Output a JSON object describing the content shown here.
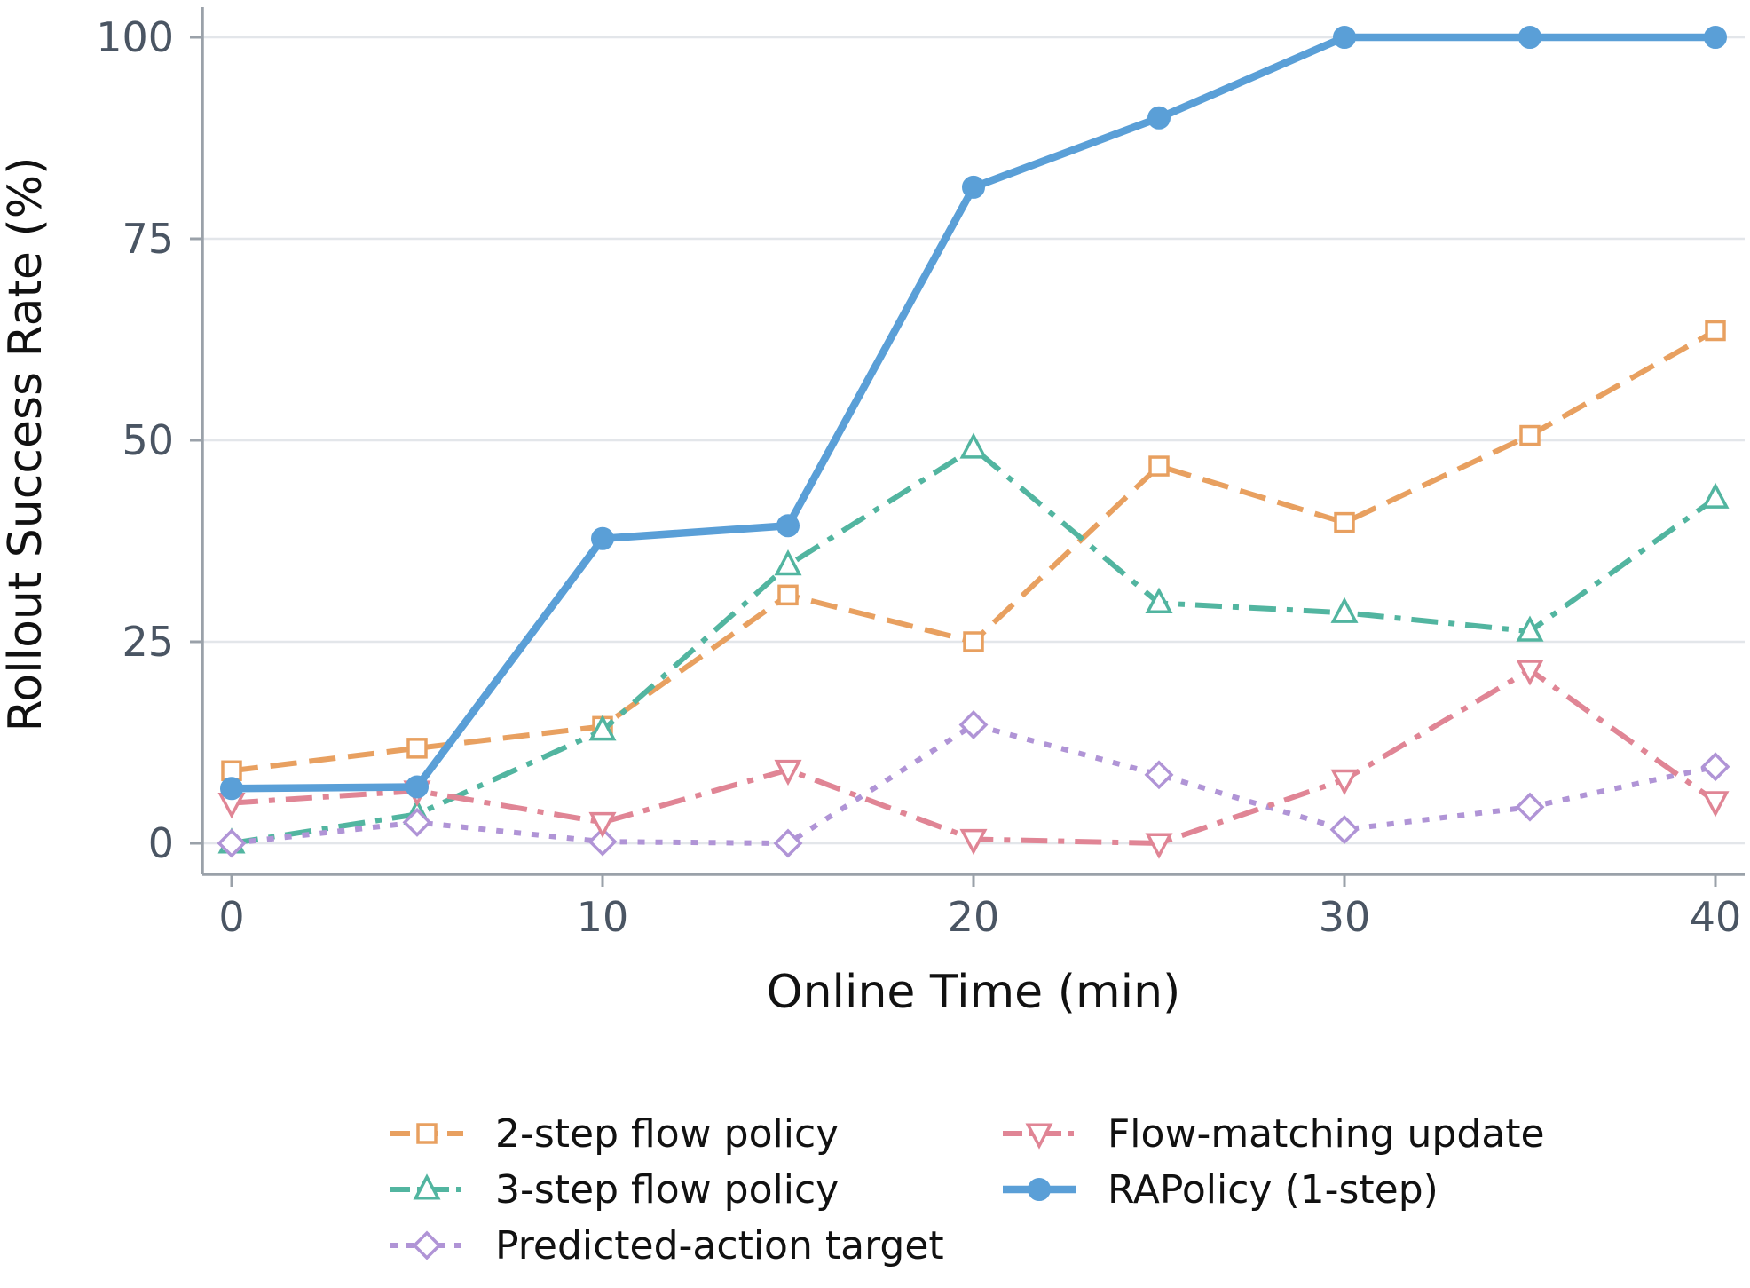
{
  "chart_data": {
    "type": "line",
    "xlabel": "Online Time (min)",
    "ylabel": "Rollout Success Rate (%)",
    "xlim": [
      -1.5,
      40.9
    ],
    "ylim": [
      -4,
      104
    ],
    "xticks": [
      0,
      10,
      20,
      30,
      40
    ],
    "yticks": [
      0,
      25,
      50,
      75,
      100
    ],
    "grid": "horizontal",
    "legend_position": "bottom",
    "series": [
      {
        "name": "2-step flow policy",
        "color": "#E8A060",
        "dash": "dashed",
        "marker": "square-open",
        "x": [
          0,
          5,
          10,
          15,
          20,
          25,
          30,
          35,
          40
        ],
        "y": [
          9,
          11.8,
          14.5,
          30.8,
          25,
          46.8,
          39.8,
          50.6,
          63.6
        ]
      },
      {
        "name": "3-step flow policy",
        "color": "#52B5A0",
        "dash": "dash-dot",
        "marker": "triangle-up-open",
        "x": [
          0,
          5,
          10,
          15,
          20,
          25,
          30,
          35,
          40
        ],
        "y": [
          0,
          3.6,
          14,
          34.5,
          49,
          29.8,
          28.6,
          26.3,
          42.8
        ]
      },
      {
        "name": "Predicted-action target",
        "color": "#B094D6",
        "dash": "dotted",
        "marker": "diamond-open",
        "x": [
          0,
          5,
          10,
          15,
          20,
          25,
          30,
          35,
          40
        ],
        "y": [
          0,
          2.6,
          0.2,
          0,
          14.7,
          8.5,
          1.7,
          4.5,
          9.5
        ]
      },
      {
        "name": "Flow-matching update",
        "color": "#E08595",
        "dash": "dash-dot",
        "marker": "triangle-down-open",
        "x": [
          0,
          5,
          10,
          15,
          20,
          25,
          30,
          35,
          40
        ],
        "y": [
          5,
          6.5,
          2.6,
          9.1,
          0.5,
          0,
          7.9,
          21.5,
          5.2
        ]
      },
      {
        "name": "RAPolicy (1-step)",
        "color": "#5A9FD7",
        "dash": "solid",
        "marker": "circle-filled",
        "x": [
          0,
          5,
          10,
          15,
          20,
          25,
          30,
          35,
          40
        ],
        "y": [
          6.8,
          7,
          37.8,
          39.4,
          81.4,
          90,
          100,
          100,
          100
        ]
      }
    ]
  }
}
